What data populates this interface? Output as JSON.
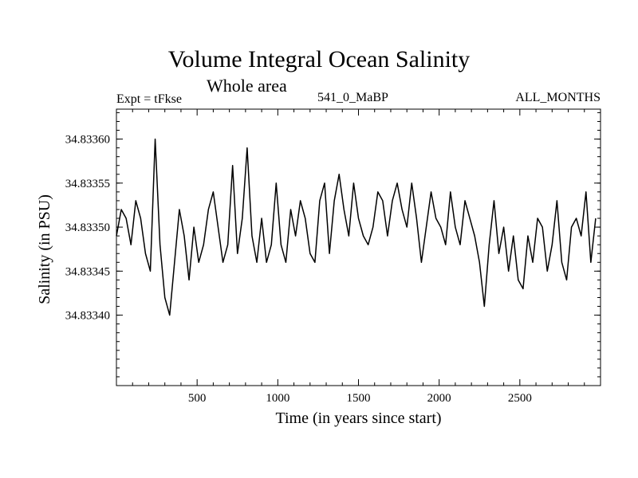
{
  "chart_data": {
    "type": "line",
    "title": "Volume Integral Ocean Salinity",
    "subtitle": "Whole area",
    "annotations": {
      "experiment": "Expt = tFkse",
      "run": "541_0_MaBP",
      "period": "ALL_MONTHS"
    },
    "xlabel": "Time (in years since start)",
    "ylabel": "Salinity (in PSU)",
    "xlim": [
      0,
      3000
    ],
    "ylim": [
      34.83332,
      34.833634
    ],
    "xticks": [
      500,
      1000,
      1500,
      2000,
      2500
    ],
    "xtick_labels": [
      "500",
      "1000",
      "1500",
      "2000",
      "2500"
    ],
    "yticks": [
      34.8334,
      34.83345,
      34.8335,
      34.83355,
      34.8336
    ],
    "ytick_labels": [
      "34.83340",
      "34.83345",
      "34.83350",
      "34.83355",
      "34.83360"
    ],
    "series": [
      {
        "name": "Salinity",
        "x_start": 0,
        "x_step": 30,
        "values": [
          34.83349,
          34.83352,
          34.83351,
          34.83348,
          34.83353,
          34.83351,
          34.83347,
          34.83345,
          34.8336,
          34.83348,
          34.83342,
          34.8334,
          34.83346,
          34.83352,
          34.83349,
          34.83344,
          34.8335,
          34.83346,
          34.83348,
          34.83352,
          34.83354,
          34.8335,
          34.83346,
          34.83348,
          34.83357,
          34.83347,
          34.83351,
          34.83359,
          34.83349,
          34.83346,
          34.83351,
          34.83346,
          34.83348,
          34.83355,
          34.83348,
          34.83346,
          34.83352,
          34.83349,
          34.83353,
          34.83351,
          34.83347,
          34.83346,
          34.83353,
          34.83355,
          34.83347,
          34.83353,
          34.83356,
          34.83352,
          34.83349,
          34.83355,
          34.83351,
          34.83349,
          34.83348,
          34.8335,
          34.83354,
          34.83353,
          34.83349,
          34.83353,
          34.83355,
          34.83352,
          34.8335,
          34.83355,
          34.83351,
          34.83346,
          34.8335,
          34.83354,
          34.83351,
          34.8335,
          34.83348,
          34.83354,
          34.8335,
          34.83348,
          34.83353,
          34.83351,
          34.83349,
          34.83346,
          34.83341,
          34.83348,
          34.83353,
          34.83347,
          34.8335,
          34.83345,
          34.83349,
          34.83344,
          34.83343,
          34.83349,
          34.83346,
          34.83351,
          34.8335,
          34.83345,
          34.83348,
          34.83353,
          34.83346,
          34.83344,
          34.8335,
          34.83351,
          34.83349,
          34.83354,
          34.83346,
          34.83351
        ]
      }
    ]
  }
}
